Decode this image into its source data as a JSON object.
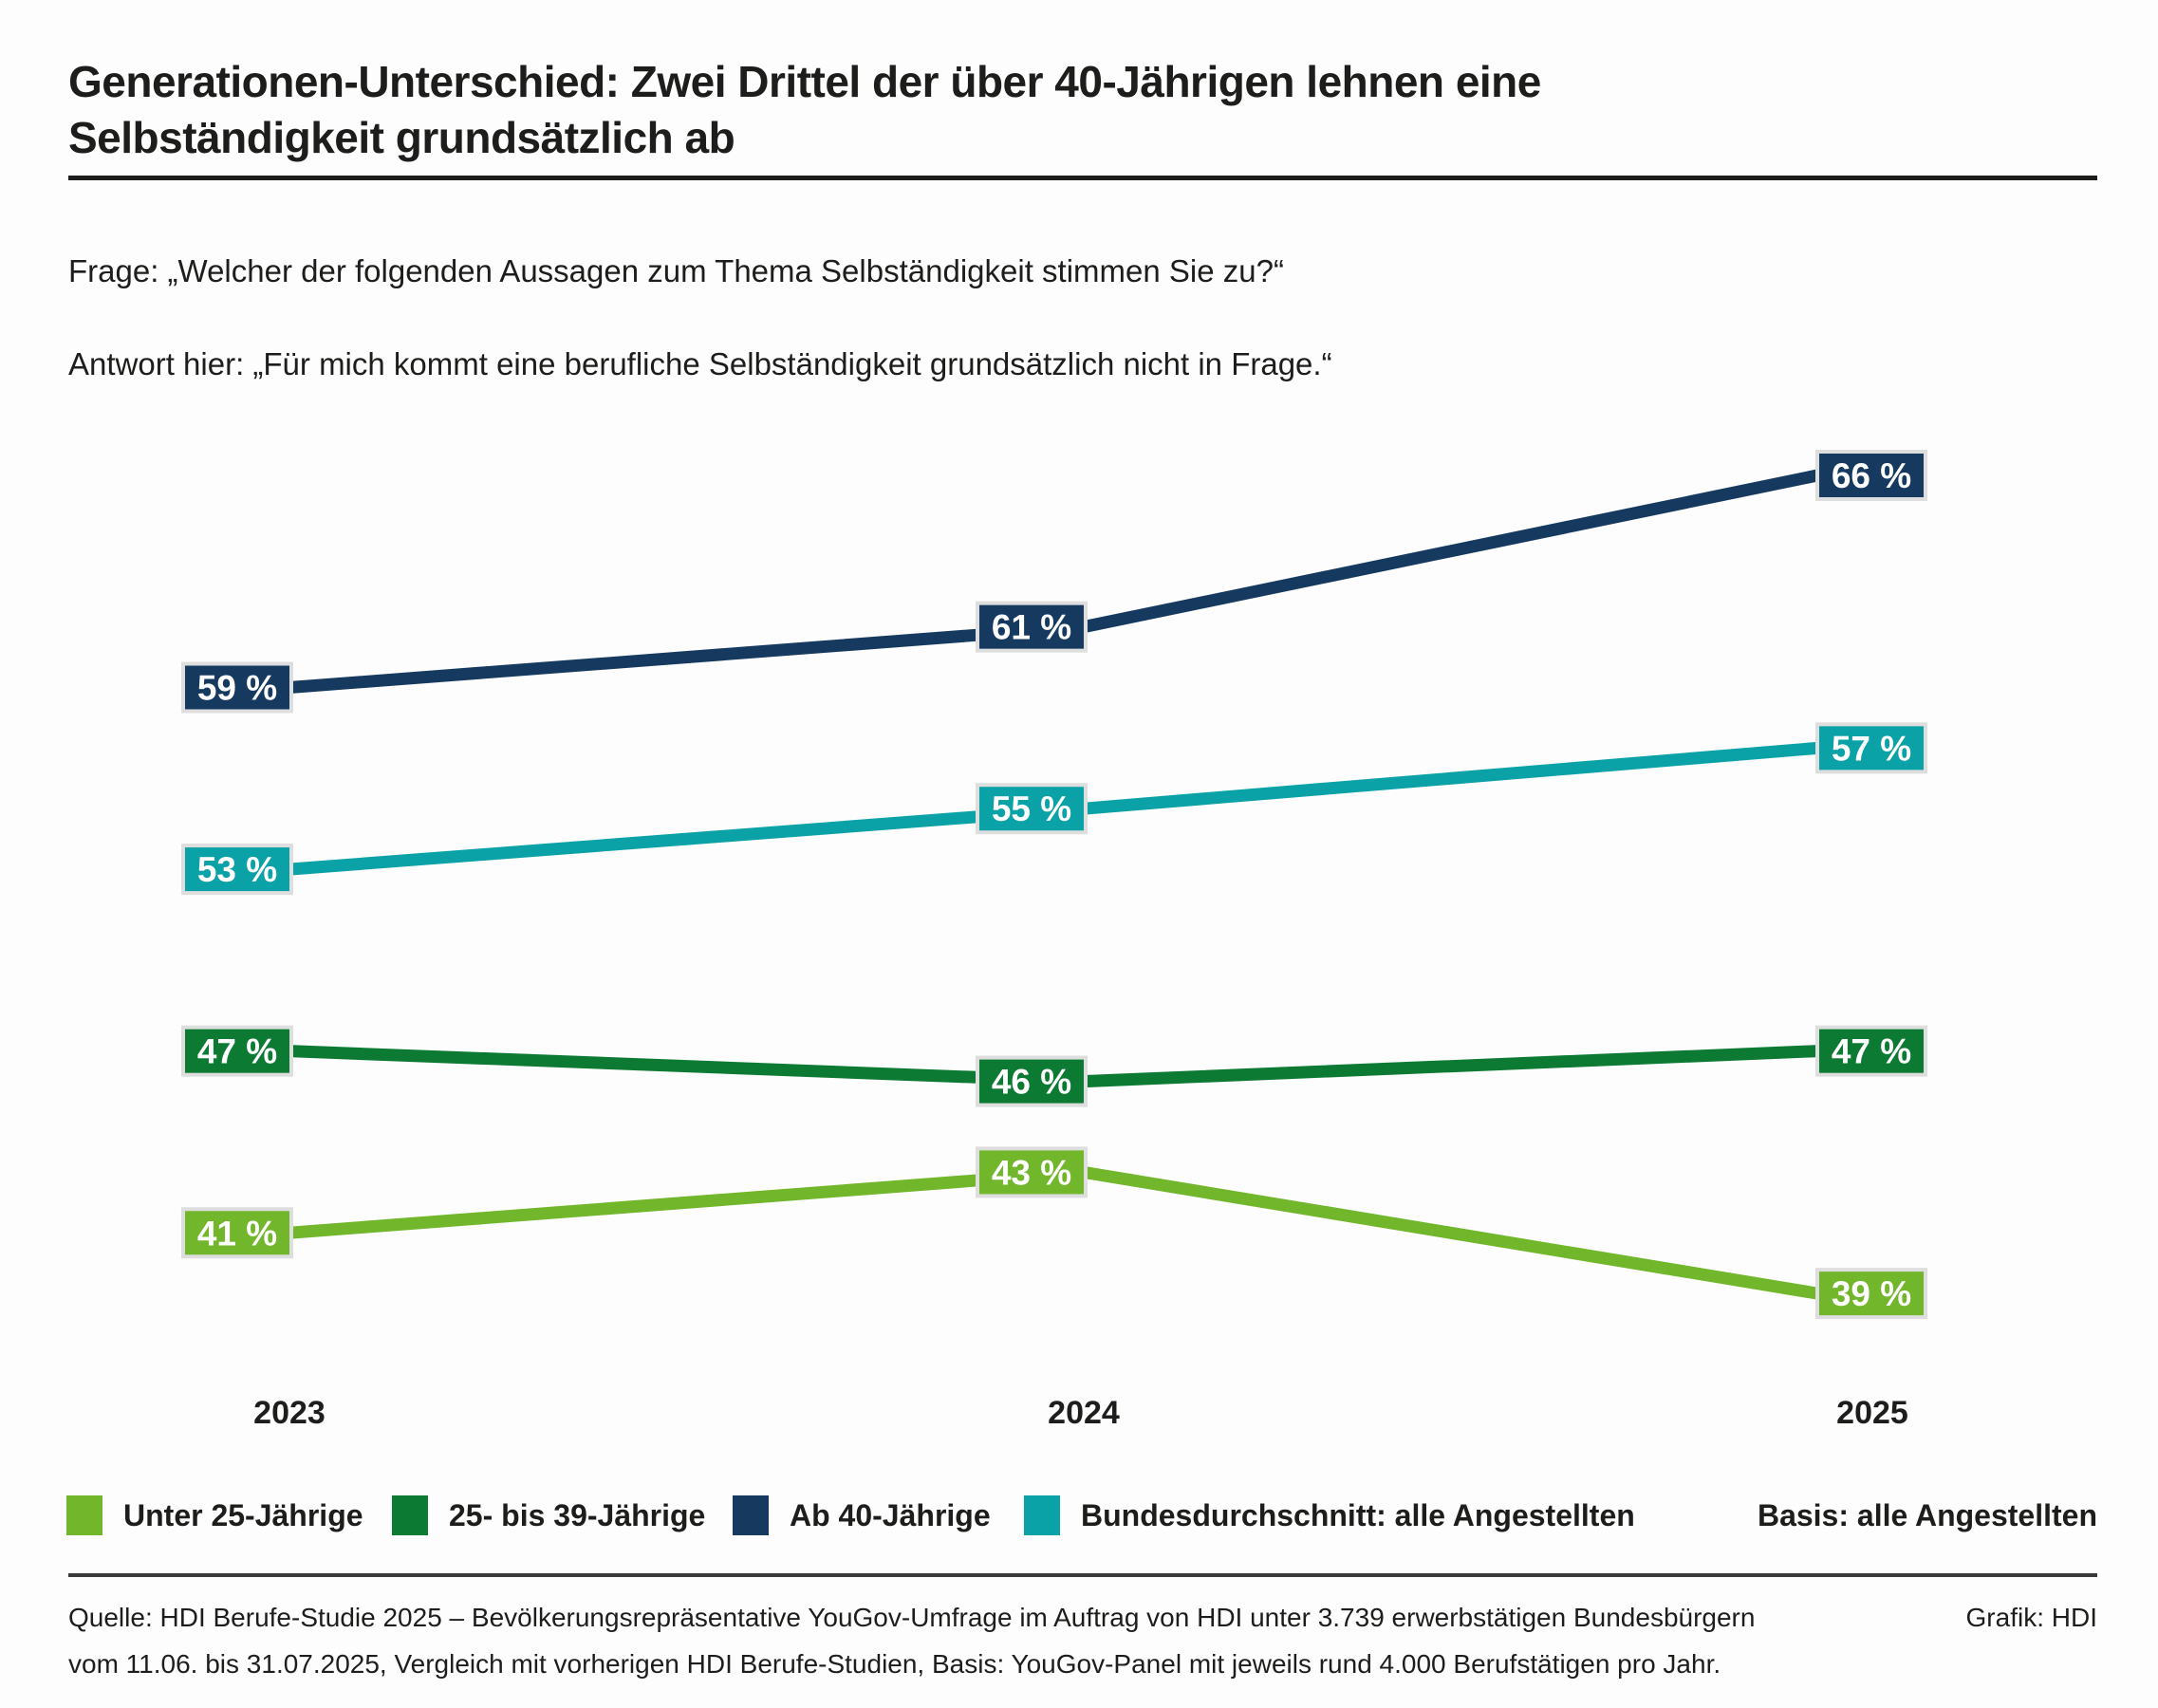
{
  "page": {
    "title": "Generationen-Unterschied: Zwei Drittel der über 40-Jährigen lehnen eine\nSelbständigkeit grundsätzlich ab",
    "question": "Frage: „Welcher der folgenden Aussagen zum Thema Selbständigkeit stimmen Sie zu?“",
    "answer": "Antwort hier: „Für mich kommt eine berufliche Selbständigkeit grundsätzlich nicht in Frage.“"
  },
  "chart_data": {
    "type": "line",
    "x": [
      "2023",
      "2024",
      "2025"
    ],
    "series": [
      {
        "name": "Unter 25-Jährige",
        "color": "#72b62c",
        "values": [
          41,
          43,
          39
        ]
      },
      {
        "name": "25- bis 39-Jährige",
        "color": "#0d7a33",
        "values": [
          47,
          46,
          47
        ]
      },
      {
        "name": "Ab 40-Jährige",
        "color": "#163a5f",
        "values": [
          59,
          61,
          66
        ]
      },
      {
        "name": "Bundesdurchschnitt: alle Angestellten",
        "color": "#0aa1a7",
        "values": [
          53,
          55,
          57
        ]
      }
    ],
    "unit": "%",
    "ylim": [
      36,
      68
    ],
    "grid": false,
    "legend_position": "bottom",
    "point_labels": true,
    "label_text_color": "#ffffff",
    "label_border_color": "#dedede"
  },
  "legend": {
    "basis_label": "Basis: alle Angestellten"
  },
  "footer": {
    "source_line1": "Quelle: HDI Berufe-Studie 2025 – Bevölkerungsrepräsentative YouGov-Umfrage im Auftrag von HDI unter 3.739 erwerbstätigen Bundesbürgern",
    "source_line2": "vom 11.06. bis 31.07.2025, Vergleich mit vorherigen HDI Berufe-Studien, Basis: YouGov-Panel mit jeweils rund 4.000 Berufstätigen pro Jahr.",
    "credit": "Grafik: HDI"
  }
}
